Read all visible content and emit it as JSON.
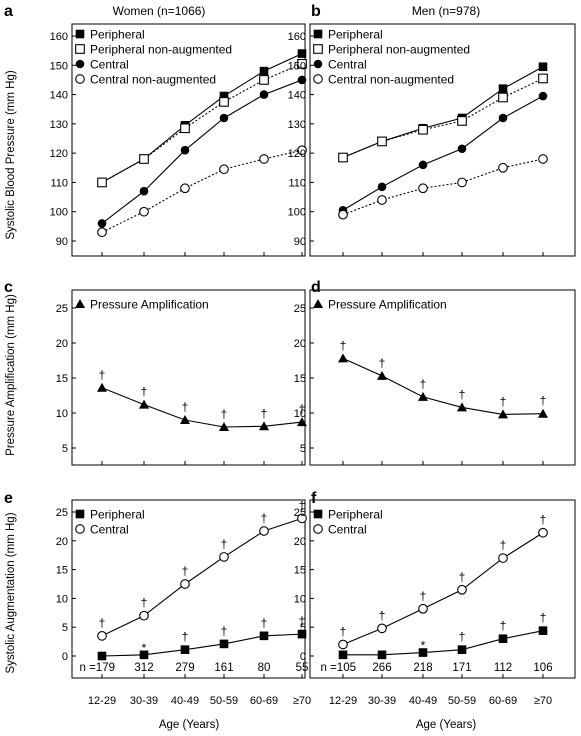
{
  "figure": {
    "panel_letters": [
      "a",
      "b",
      "c",
      "d",
      "e",
      "f"
    ],
    "titles": [
      "Women (n=1066)",
      "Men (n=978)"
    ],
    "y_labels": [
      "Systolic Blood Pressure (mm Hg)",
      "Pressure Amplification (mm Hg)",
      "Systolic Augmentation (mm Hg)"
    ],
    "x_label": "Age (Years)",
    "age_groups": [
      "12-29",
      "30-39",
      "40-49",
      "50-59",
      "60-69",
      "≥70"
    ],
    "n_women": [
      "n =179",
      "312",
      "279",
      "161",
      "80",
      "55"
    ],
    "n_men": [
      "n =105",
      "266",
      "218",
      "171",
      "112",
      "106"
    ],
    "colors": {
      "ink": "#000000",
      "open_fill": "#ffffff"
    }
  },
  "chart_data": [
    {
      "panel": "a",
      "type": "line",
      "title": "Women (n=1066)",
      "xlabel": "",
      "ylabel": "Systolic Blood Pressure (mm Hg)",
      "categories": [
        "12-29",
        "30-39",
        "40-49",
        "50-59",
        "60-69",
        "≥70"
      ],
      "ylim": [
        88,
        165
      ],
      "yticks": [
        90,
        100,
        110,
        120,
        130,
        140,
        150,
        160
      ],
      "legend": "top-left",
      "series": [
        {
          "name": "Peripheral",
          "marker": "square-filled",
          "dash": "solid",
          "values": [
            110,
            118,
            129.5,
            139.5,
            148,
            154
          ]
        },
        {
          "name": "Peripheral non-augmented",
          "marker": "square-open",
          "dash": "dotted",
          "values": [
            110,
            118,
            128.5,
            137.5,
            145,
            150.5
          ]
        },
        {
          "name": "Central",
          "marker": "circle-filled",
          "dash": "solid",
          "values": [
            96,
            107,
            121,
            132,
            140,
            145
          ]
        },
        {
          "name": "Central non-augmented",
          "marker": "circle-open",
          "dash": "dotted",
          "values": [
            93,
            100,
            108,
            114.5,
            118,
            121
          ]
        }
      ]
    },
    {
      "panel": "b",
      "type": "line",
      "title": "Men (n=978)",
      "xlabel": "",
      "ylabel": "",
      "categories": [
        "12-29",
        "30-39",
        "40-49",
        "50-59",
        "60-69",
        "≥70"
      ],
      "ylim": [
        88,
        165
      ],
      "yticks": [
        90,
        100,
        110,
        120,
        130,
        140,
        150,
        160
      ],
      "legend": "top-left",
      "series": [
        {
          "name": "Peripheral",
          "marker": "square-filled",
          "dash": "solid",
          "values": [
            118.5,
            124,
            128.5,
            132,
            142,
            149.5
          ]
        },
        {
          "name": "Peripheral non-augmented",
          "marker": "square-open",
          "dash": "dotted",
          "values": [
            118.5,
            124,
            128,
            131,
            139,
            145.5
          ]
        },
        {
          "name": "Central",
          "marker": "circle-filled",
          "dash": "solid",
          "values": [
            100.5,
            108.5,
            116,
            121.5,
            132,
            139.5
          ]
        },
        {
          "name": "Central non-augmented",
          "marker": "circle-open",
          "dash": "dotted",
          "values": [
            99,
            104,
            108,
            110,
            115,
            118
          ]
        }
      ]
    },
    {
      "panel": "c",
      "type": "line",
      "xlabel": "",
      "ylabel": "Pressure Amplification (mm Hg)",
      "categories": [
        "12-29",
        "30-39",
        "40-49",
        "50-59",
        "60-69",
        "≥70"
      ],
      "ylim": [
        3,
        27
      ],
      "yticks": [
        5,
        10,
        15,
        20,
        25
      ],
      "legend": "top-left",
      "series": [
        {
          "name": "Pressure Amplification",
          "marker": "triangle-filled",
          "dash": "solid",
          "values": [
            13.6,
            11.2,
            9,
            8,
            8.1,
            8.7
          ],
          "annotations": [
            "†",
            "†",
            "†",
            "†",
            "†",
            "†"
          ]
        }
      ]
    },
    {
      "panel": "d",
      "type": "line",
      "xlabel": "",
      "ylabel": "",
      "categories": [
        "12-29",
        "30-39",
        "40-49",
        "50-59",
        "60-69",
        "≥70"
      ],
      "ylim": [
        3,
        27
      ],
      "yticks": [
        5,
        10,
        15,
        20,
        25
      ],
      "legend": "top-left",
      "series": [
        {
          "name": "Pressure Amplification",
          "marker": "triangle-filled",
          "dash": "solid",
          "values": [
            17.8,
            15.3,
            12.3,
            10.8,
            9.8,
            9.9
          ],
          "annotations": [
            "†",
            "†",
            "†",
            "†",
            "†",
            "†"
          ]
        }
      ]
    },
    {
      "panel": "e",
      "type": "line",
      "xlabel": "Age (Years)",
      "ylabel": "Systolic Augmentation (mm Hg)",
      "categories": [
        "12-29",
        "30-39",
        "40-49",
        "50-59",
        "60-69",
        "≥70"
      ],
      "ylim": [
        -2,
        27
      ],
      "yticks": [
        0,
        5,
        10,
        15,
        20,
        25
      ],
      "legend": "top-left",
      "series": [
        {
          "name": "Peripheral",
          "marker": "square-filled",
          "dash": "solid",
          "values": [
            0,
            0.2,
            1.1,
            2.1,
            3.5,
            3.8
          ],
          "annotations": [
            "",
            "*",
            "†",
            "†",
            "†",
            "†"
          ]
        },
        {
          "name": "Central",
          "marker": "circle-open",
          "dash": "solid",
          "values": [
            3.5,
            7,
            12.5,
            17.2,
            21.7,
            23.9
          ],
          "annotations": [
            "†",
            "†",
            "†",
            "†",
            "†",
            "†"
          ]
        }
      ],
      "n": [
        "n =179",
        "312",
        "279",
        "161",
        "80",
        "55"
      ]
    },
    {
      "panel": "f",
      "type": "line",
      "xlabel": "Age (Years)",
      "ylabel": "",
      "categories": [
        "12-29",
        "30-39",
        "40-49",
        "50-59",
        "60-69",
        "≥70"
      ],
      "ylim": [
        -2,
        27
      ],
      "yticks": [
        0,
        5,
        10,
        15,
        20,
        25
      ],
      "legend": "top-left",
      "series": [
        {
          "name": "Peripheral",
          "marker": "square-filled",
          "dash": "solid",
          "values": [
            0.2,
            0.2,
            0.6,
            1.1,
            3,
            4.4
          ],
          "annotations": [
            "",
            "",
            "*",
            "†",
            "†",
            "†"
          ]
        },
        {
          "name": "Central",
          "marker": "circle-open",
          "dash": "solid",
          "values": [
            2,
            4.8,
            8.2,
            11.5,
            17,
            21.4
          ],
          "annotations": [
            "†",
            "†",
            "†",
            "†",
            "†",
            "†"
          ]
        }
      ],
      "n": [
        "n =105",
        "266",
        "218",
        "171",
        "112",
        "106"
      ]
    }
  ]
}
